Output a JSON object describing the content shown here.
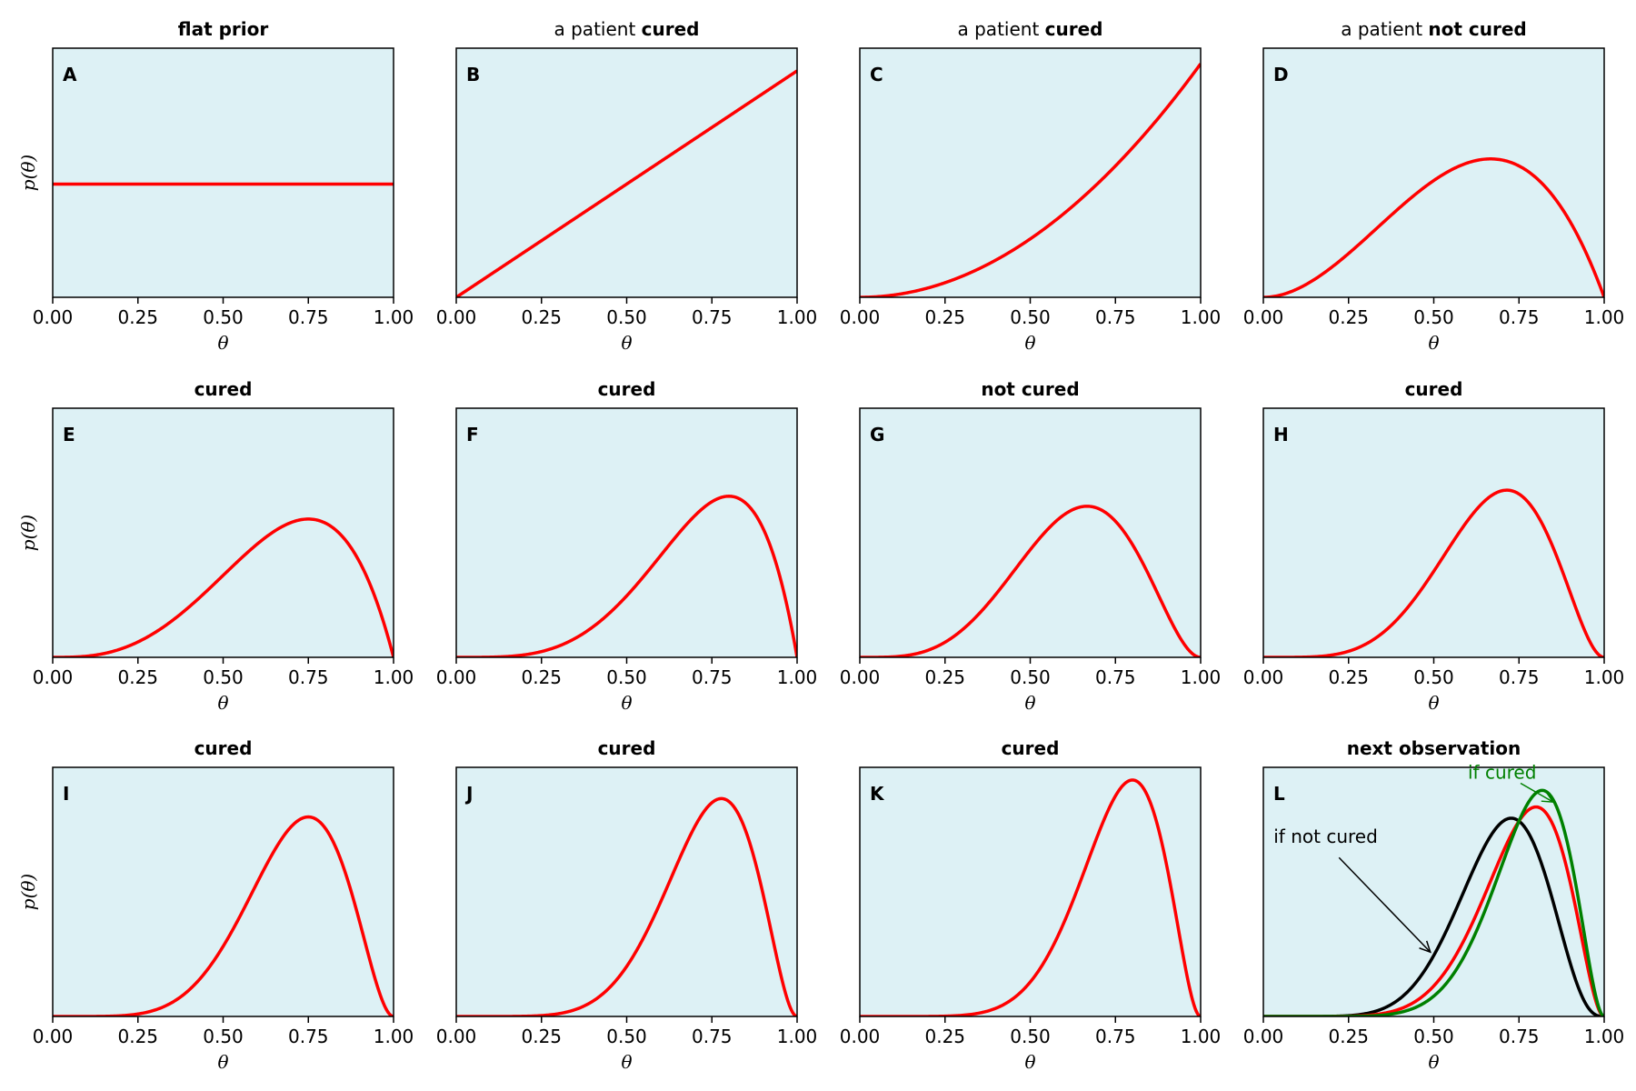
{
  "figure": {
    "background": "#ffffff",
    "panel_bg": "#ddf1f5",
    "line_colors": {
      "posterior": "#ff0000",
      "if_not_cured": "#000000",
      "if_cured": "#008000"
    }
  },
  "chart_data": [
    {
      "type": "line",
      "letter": "A",
      "title": [
        {
          "text": "flat prior",
          "bold": true
        }
      ],
      "xlabel": "θ",
      "ylabel": "p(θ)",
      "xlim": [
        0,
        1
      ],
      "ylim": [
        0,
        2.2
      ],
      "xticks": [
        "0.00",
        "0.25",
        "0.50",
        "0.75",
        "1.00"
      ],
      "series": [
        {
          "role": "posterior",
          "a": 1,
          "b": 1
        }
      ]
    },
    {
      "type": "line",
      "letter": "B",
      "title": [
        {
          "text": "a patient ",
          "bold": false
        },
        {
          "text": "cured",
          "bold": true
        }
      ],
      "xlabel": "θ",
      "ylabel": "",
      "xlim": [
        0,
        1
      ],
      "ylim": [
        0,
        2.2
      ],
      "xticks": [
        "0.00",
        "0.25",
        "0.50",
        "0.75",
        "1.00"
      ],
      "series": [
        {
          "role": "posterior",
          "a": 2,
          "b": 1
        }
      ]
    },
    {
      "type": "line",
      "letter": "C",
      "title": [
        {
          "text": "a patient ",
          "bold": false
        },
        {
          "text": "cured",
          "bold": true
        }
      ],
      "xlabel": "θ",
      "ylabel": "",
      "xlim": [
        0,
        1
      ],
      "ylim": [
        0,
        3.2
      ],
      "xticks": [
        "0.00",
        "0.25",
        "0.50",
        "0.75",
        "1.00"
      ],
      "series": [
        {
          "role": "posterior",
          "a": 3,
          "b": 1
        }
      ]
    },
    {
      "type": "line",
      "letter": "D",
      "title": [
        {
          "text": "a patient ",
          "bold": false
        },
        {
          "text": "not cured",
          "bold": true
        }
      ],
      "xlabel": "θ",
      "ylabel": "",
      "xlim": [
        0,
        1
      ],
      "ylim": [
        0,
        3.2
      ],
      "xticks": [
        "0.00",
        "0.25",
        "0.50",
        "0.75",
        "1.00"
      ],
      "series": [
        {
          "role": "posterior",
          "a": 3,
          "b": 2
        }
      ]
    },
    {
      "type": "line",
      "letter": "E",
      "title": [
        {
          "text": "cured",
          "bold": true
        }
      ],
      "xlabel": "θ",
      "ylabel": "p(θ)",
      "xlim": [
        0,
        1
      ],
      "ylim": [
        0,
        3.8
      ],
      "xticks": [
        "0.00",
        "0.25",
        "0.50",
        "0.75",
        "1.00"
      ],
      "series": [
        {
          "role": "posterior",
          "a": 4,
          "b": 2
        }
      ]
    },
    {
      "type": "line",
      "letter": "F",
      "title": [
        {
          "text": "cured",
          "bold": true
        }
      ],
      "xlabel": "θ",
      "ylabel": "",
      "xlim": [
        0,
        1
      ],
      "ylim": [
        0,
        3.8
      ],
      "xticks": [
        "0.00",
        "0.25",
        "0.50",
        "0.75",
        "1.00"
      ],
      "series": [
        {
          "role": "posterior",
          "a": 5,
          "b": 2
        }
      ]
    },
    {
      "type": "line",
      "letter": "G",
      "title": [
        {
          "text": "not cured",
          "bold": true
        }
      ],
      "xlabel": "θ",
      "ylabel": "",
      "xlim": [
        0,
        1
      ],
      "ylim": [
        0,
        3.8
      ],
      "xticks": [
        "0.00",
        "0.25",
        "0.50",
        "0.75",
        "1.00"
      ],
      "series": [
        {
          "role": "posterior",
          "a": 5,
          "b": 3
        }
      ]
    },
    {
      "type": "line",
      "letter": "H",
      "title": [
        {
          "text": "cured",
          "bold": true
        }
      ],
      "xlabel": "θ",
      "ylabel": "",
      "xlim": [
        0,
        1
      ],
      "ylim": [
        0,
        3.8
      ],
      "xticks": [
        "0.00",
        "0.25",
        "0.50",
        "0.75",
        "1.00"
      ],
      "series": [
        {
          "role": "posterior",
          "a": 6,
          "b": 3
        }
      ]
    },
    {
      "type": "line",
      "letter": "I",
      "title": [
        {
          "text": "cured",
          "bold": true
        }
      ],
      "xlabel": "θ",
      "ylabel": "p(θ)",
      "xlim": [
        0,
        1
      ],
      "ylim": [
        0,
        3.5
      ],
      "xticks": [
        "0.00",
        "0.25",
        "0.50",
        "0.75",
        "1.00"
      ],
      "series": [
        {
          "role": "posterior",
          "a": 7,
          "b": 3
        }
      ]
    },
    {
      "type": "line",
      "letter": "J",
      "title": [
        {
          "text": "cured",
          "bold": true
        }
      ],
      "xlabel": "θ",
      "ylabel": "",
      "xlim": [
        0,
        1
      ],
      "ylim": [
        0,
        3.5
      ],
      "xticks": [
        "0.00",
        "0.25",
        "0.50",
        "0.75",
        "1.00"
      ],
      "series": [
        {
          "role": "posterior",
          "a": 8,
          "b": 3
        }
      ]
    },
    {
      "type": "line",
      "letter": "K",
      "title": [
        {
          "text": "cured",
          "bold": true
        }
      ],
      "xlabel": "θ",
      "ylabel": "",
      "xlim": [
        0,
        1
      ],
      "ylim": [
        0,
        3.5
      ],
      "xticks": [
        "0.00",
        "0.25",
        "0.50",
        "0.75",
        "1.00"
      ],
      "series": [
        {
          "role": "posterior",
          "a": 9,
          "b": 3
        }
      ]
    },
    {
      "type": "line",
      "letter": "L",
      "title": [
        {
          "text": "next observation",
          "bold": true
        }
      ],
      "xlabel": "θ",
      "ylabel": "",
      "xlim": [
        0,
        1
      ],
      "ylim": [
        0,
        3.95
      ],
      "xticks": [
        "0.00",
        "0.25",
        "0.50",
        "0.75",
        "1.00"
      ],
      "series": [
        {
          "role": "if_not_cured",
          "a": 9,
          "b": 4
        },
        {
          "role": "posterior",
          "a": 9,
          "b": 3
        },
        {
          "role": "if_cured",
          "a": 10,
          "b": 3
        }
      ],
      "annotations": [
        {
          "text": "if not cured",
          "role": "if_not_cured",
          "xy": [
            0.49,
            1.02
          ],
          "xytext": [
            0.03,
            2.75
          ]
        },
        {
          "text": "if cured",
          "role": "if_cured",
          "xy": [
            0.85,
            3.4
          ],
          "xytext": [
            0.6,
            3.77
          ]
        }
      ]
    }
  ]
}
